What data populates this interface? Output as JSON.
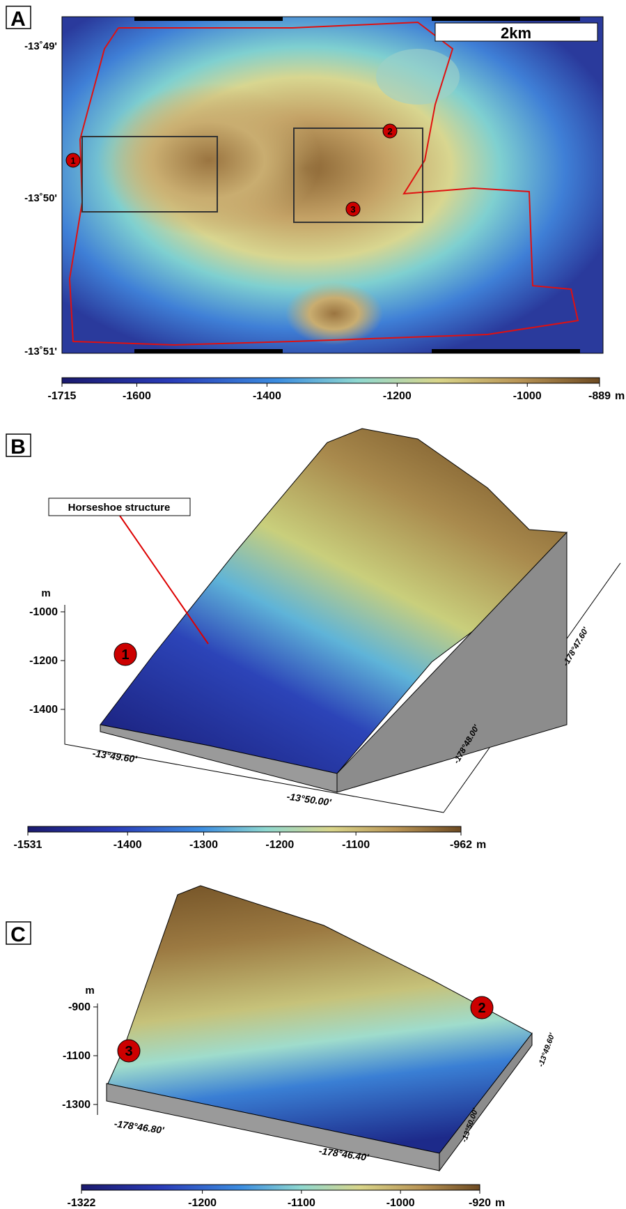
{
  "panels": [
    {
      "label": "A",
      "scale_bar": "2km",
      "lat_labels": [
        "-13˚49'",
        "-13˚50'",
        "-13˚51'"
      ],
      "markers": [
        "1",
        "2",
        "3"
      ],
      "colorbar": {
        "ticks": [
          -1715,
          -1600,
          -1400,
          -1200,
          -1000,
          -889
        ],
        "unit": "m"
      }
    },
    {
      "label": "B",
      "annotation": "Horseshoe structure",
      "markers": [
        "1"
      ],
      "z_unit": "m",
      "z_ticks": [
        -1000,
        -1200,
        -1400
      ],
      "x_labels": [
        "-13°49.60'",
        "-13°50.00'"
      ],
      "y_labels": [
        "-178°48.00'",
        "-178°47.60'"
      ],
      "colorbar": {
        "ticks": [
          -1531,
          -1400,
          -1300,
          -1200,
          -1100,
          -962
        ],
        "unit": "m"
      }
    },
    {
      "label": "C",
      "markers": [
        "3",
        "2"
      ],
      "z_unit": "m",
      "z_ticks": [
        -900,
        -1100,
        -1300
      ],
      "x_labels": [
        "-178°46.80'",
        "-178°46.40'"
      ],
      "y_labels": [
        "-13°50.00'",
        "-13°49.60'"
      ],
      "colorbar": {
        "ticks": [
          -1322,
          -1200,
          -1100,
          -1000,
          -920
        ],
        "unit": "m"
      }
    }
  ]
}
